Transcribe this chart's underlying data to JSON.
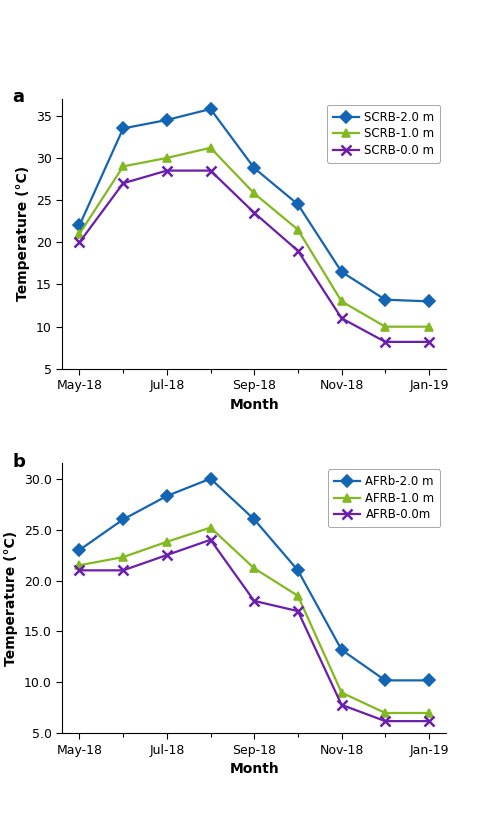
{
  "panel_a": {
    "title": "a",
    "xlabel": "Month",
    "ylabel": "Temperature (°C)",
    "ylim": [
      5,
      37
    ],
    "yticks": [
      5,
      10,
      15,
      20,
      25,
      30,
      35
    ],
    "x_tick_positions": [
      0,
      2,
      4,
      6,
      8
    ],
    "x_tick_labels": [
      "May-18",
      "Jul-18",
      "Sep-18",
      "Nov-18",
      "Jan-19"
    ],
    "series": [
      {
        "label": "SCRB-2.0 m",
        "color": "#1464b4",
        "marker": "D",
        "x": [
          0,
          1,
          2,
          3,
          4,
          5,
          6,
          7,
          8
        ],
        "y": [
          22.0,
          33.5,
          34.5,
          35.8,
          28.8,
          24.5,
          16.5,
          13.2,
          13.0
        ]
      },
      {
        "label": "SCRB-1.0 m",
        "color": "#82b820",
        "marker": "^",
        "x": [
          0,
          1,
          2,
          3,
          4,
          5,
          6,
          7,
          8
        ],
        "y": [
          21.0,
          29.0,
          30.0,
          31.2,
          25.8,
          21.5,
          13.0,
          10.0,
          10.0
        ]
      },
      {
        "label": "SCRB-0.0 m",
        "color": "#6a1eaa",
        "marker": "x",
        "x": [
          0,
          1,
          2,
          3,
          4,
          5,
          6,
          7,
          8
        ],
        "y": [
          20.0,
          27.0,
          28.5,
          28.5,
          23.5,
          19.0,
          11.0,
          8.2,
          8.2
        ]
      }
    ]
  },
  "panel_b": {
    "title": "b",
    "xlabel": "Month",
    "ylabel": "Temperature (°C)",
    "ylim": [
      5.0,
      31.5
    ],
    "yticks": [
      5.0,
      10.0,
      15.0,
      20.0,
      25.0,
      30.0
    ],
    "x_tick_positions": [
      0,
      2,
      4,
      6,
      8
    ],
    "x_tick_labels": [
      "May-18",
      "Jul-18",
      "Sep-18",
      "Nov-18",
      "Jan-19"
    ],
    "series": [
      {
        "label": "AFRb-2.0 m",
        "color": "#1464b4",
        "marker": "D",
        "x": [
          0,
          1,
          2,
          3,
          4,
          5,
          6,
          7,
          8
        ],
        "y": [
          23.0,
          26.0,
          28.3,
          30.0,
          26.0,
          21.0,
          13.2,
          10.2,
          10.2
        ]
      },
      {
        "label": "AFRB-1.0 m",
        "color": "#82b820",
        "marker": "^",
        "x": [
          0,
          1,
          2,
          3,
          4,
          5,
          6,
          7,
          8
        ],
        "y": [
          21.5,
          22.3,
          23.8,
          25.2,
          21.2,
          18.5,
          9.0,
          7.0,
          7.0
        ]
      },
      {
        "label": "AFRB-0.0m",
        "color": "#6a1eaa",
        "marker": "x",
        "x": [
          0,
          1,
          2,
          3,
          4,
          5,
          6,
          7,
          8
        ],
        "y": [
          21.0,
          21.0,
          22.5,
          24.0,
          18.0,
          17.0,
          7.8,
          6.2,
          6.2
        ]
      }
    ]
  },
  "background_color": "#ffffff",
  "legend_fontsize": 8.5,
  "axis_label_fontsize": 10,
  "tick_fontsize": 9,
  "title_fontsize": 13,
  "linewidth": 1.6,
  "markersize": 6
}
